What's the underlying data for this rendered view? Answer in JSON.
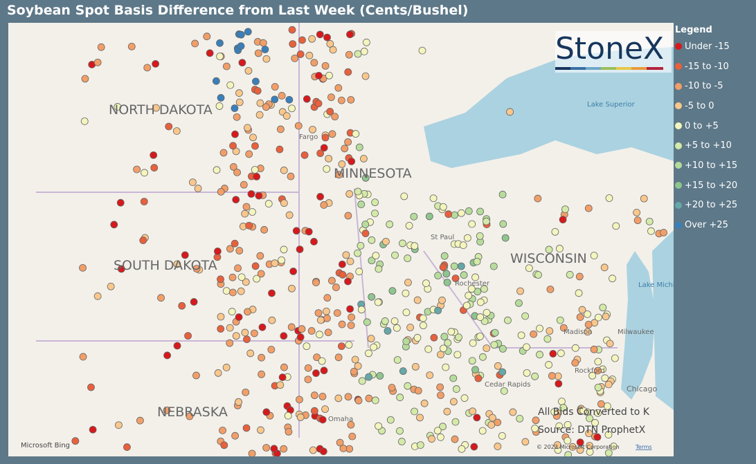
{
  "title": "Soybean Spot Basis Difference from Last Week (Cents/Bushel)",
  "legend": {
    "title": "Legend",
    "items": [
      {
        "label": "Under -15",
        "color": "#d7191c"
      },
      {
        "label": "-15 to -10",
        "color": "#e8603c"
      },
      {
        "label": "-10 to -5",
        "color": "#f29e68"
      },
      {
        "label": "-5 to 0",
        "color": "#f9c78c"
      },
      {
        "label": "0 to +5",
        "color": "#f4f5bd"
      },
      {
        "label": "+5 to +10",
        "color": "#d3eaa8"
      },
      {
        "label": "+10 to +15",
        "color": "#b6dc9c"
      },
      {
        "label": "+15 to +20",
        "color": "#8fc58e"
      },
      {
        "label": "+20 to +25",
        "color": "#66a8a8"
      },
      {
        "label": "Over +25",
        "color": "#3a7fba"
      }
    ]
  },
  "logo": "StoneX",
  "map_labels": {
    "states": [
      "NORTH DAKOTA",
      "MINNESOTA",
      "SOUTH DAKOTA",
      "WISCONSIN",
      "NEBRASKA"
    ],
    "cities": [
      "Fargo",
      "St Paul",
      "Rochester",
      "Madison",
      "Milwaukee",
      "Rockford",
      "Chicago",
      "Omaha",
      "Cedar Rapids"
    ],
    "water": [
      "Lake Superior",
      "Lake Michigan"
    ]
  },
  "notes": [
    "All Bids Converted to K",
    "Source: DTN ProphetX"
  ],
  "attribution": {
    "bing": "Microsoft Bing",
    "copyright": "© 2023 Microsoft Corporation",
    "terms": "Terms"
  }
}
